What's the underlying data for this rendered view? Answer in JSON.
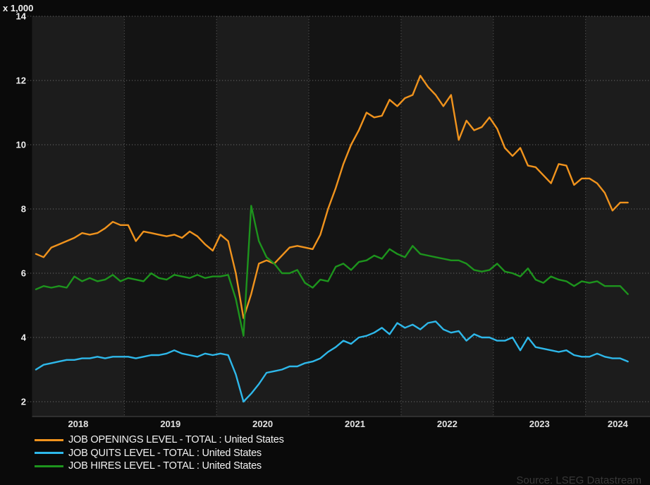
{
  "chart_data": {
    "type": "line",
    "y_multiplier_label": "x 1,000",
    "ylim": [
      2,
      14
    ],
    "yticks": [
      2,
      4,
      6,
      8,
      10,
      12,
      14
    ],
    "years": [
      2018,
      2019,
      2020,
      2021,
      2022,
      2023,
      2024
    ],
    "x_start": "2018-01",
    "x_end": "2024-06",
    "frequency": "monthly",
    "grid": "dotted",
    "legend_position": "bottom-left",
    "series": [
      {
        "name": "JOB OPENINGS LEVEL - TOTAL : United States",
        "color": "#F0931D",
        "values": [
          6.6,
          6.5,
          6.8,
          6.9,
          7.0,
          7.1,
          7.25,
          7.2,
          7.25,
          7.4,
          7.6,
          7.5,
          7.5,
          7.0,
          7.3,
          7.25,
          7.2,
          7.15,
          7.2,
          7.1,
          7.3,
          7.15,
          6.9,
          6.7,
          7.2,
          7.0,
          6.0,
          4.6,
          5.35,
          6.3,
          6.4,
          6.3,
          6.55,
          6.8,
          6.85,
          6.8,
          6.75,
          7.2,
          8.0,
          8.65,
          9.4,
          10.0,
          10.45,
          11.0,
          10.85,
          10.9,
          11.4,
          11.2,
          11.45,
          11.55,
          12.15,
          11.8,
          11.55,
          11.2,
          11.55,
          10.15,
          10.75,
          10.45,
          10.55,
          10.85,
          10.5,
          9.9,
          9.65,
          9.9,
          9.35,
          9.3,
          9.05,
          8.8,
          9.4,
          9.35,
          8.75,
          8.95,
          8.95,
          8.8,
          8.5,
          7.95,
          8.2,
          8.2
        ]
      },
      {
        "name": "JOB QUITS LEVEL - TOTAL : United States",
        "color": "#2EB8EA",
        "values": [
          3.0,
          3.15,
          3.2,
          3.25,
          3.3,
          3.3,
          3.35,
          3.35,
          3.4,
          3.35,
          3.4,
          3.4,
          3.4,
          3.35,
          3.4,
          3.45,
          3.45,
          3.5,
          3.6,
          3.5,
          3.45,
          3.4,
          3.5,
          3.45,
          3.5,
          3.45,
          2.85,
          2.0,
          2.25,
          2.55,
          2.9,
          2.95,
          3.0,
          3.1,
          3.1,
          3.2,
          3.25,
          3.35,
          3.55,
          3.7,
          3.9,
          3.8,
          4.0,
          4.05,
          4.15,
          4.3,
          4.1,
          4.45,
          4.3,
          4.4,
          4.25,
          4.45,
          4.5,
          4.25,
          4.15,
          4.2,
          3.9,
          4.1,
          4.0,
          4.0,
          3.9,
          3.9,
          4.0,
          3.6,
          4.0,
          3.7,
          3.65,
          3.6,
          3.55,
          3.6,
          3.45,
          3.4,
          3.4,
          3.5,
          3.4,
          3.35,
          3.35,
          3.25
        ]
      },
      {
        "name": "JOB HIRES LEVEL - TOTAL : United States",
        "color": "#1D941D",
        "values": [
          5.5,
          5.6,
          5.55,
          5.6,
          5.55,
          5.9,
          5.75,
          5.85,
          5.75,
          5.8,
          5.95,
          5.75,
          5.85,
          5.8,
          5.75,
          6.0,
          5.85,
          5.8,
          5.95,
          5.9,
          5.85,
          5.95,
          5.85,
          5.9,
          5.9,
          5.95,
          5.2,
          4.05,
          8.1,
          7.0,
          6.5,
          6.3,
          6.0,
          6.0,
          6.1,
          5.7,
          5.55,
          5.8,
          5.75,
          6.2,
          6.3,
          6.1,
          6.35,
          6.4,
          6.55,
          6.45,
          6.75,
          6.6,
          6.5,
          6.85,
          6.6,
          6.55,
          6.5,
          6.45,
          6.4,
          6.4,
          6.3,
          6.1,
          6.05,
          6.1,
          6.3,
          6.05,
          6.0,
          5.9,
          6.15,
          5.8,
          5.7,
          5.9,
          5.8,
          5.75,
          5.6,
          5.75,
          5.7,
          5.75,
          5.6,
          5.6,
          5.6,
          5.35
        ]
      }
    ]
  },
  "source": {
    "label": "Source: LSEG Datastream"
  },
  "colors": {
    "background": "#0A0A0A",
    "band_light": "#1C1C1C",
    "band_dark": "#141414",
    "grid": "#A8A8A8",
    "axis_line": "#4A4A4A",
    "tick_text": "#EFEFEF",
    "source_text": "#383838"
  }
}
